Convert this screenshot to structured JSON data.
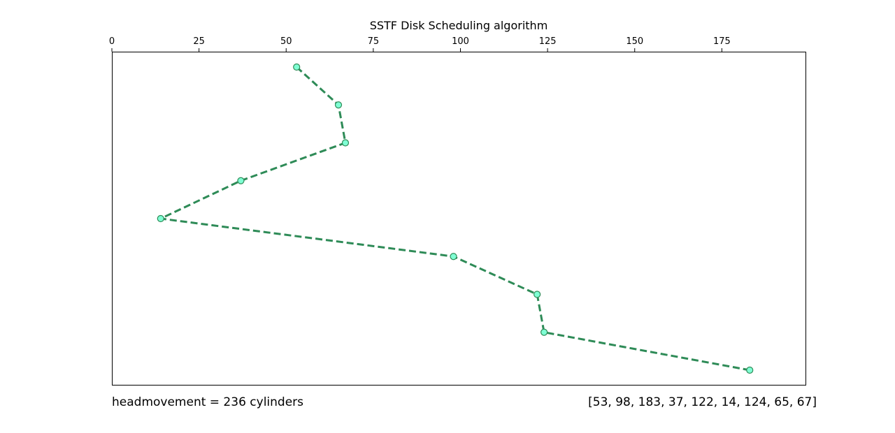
{
  "chart_data": {
    "type": "line",
    "title": "SSTF Disk Scheduling algorithm",
    "xlabel": "",
    "ylabel": "",
    "x_axis_position": "top",
    "xlim": [
      0,
      199
    ],
    "x_ticks": [
      0,
      25,
      50,
      75,
      100,
      125,
      150,
      175
    ],
    "x_tick_labels": [
      "0",
      "25",
      "50",
      "75",
      "100",
      "125",
      "150",
      "175"
    ],
    "y_axis_visible": false,
    "y_inverted": true,
    "grid": false,
    "series": [
      {
        "x": [
          53,
          65,
          67,
          37,
          14,
          98,
          122,
          124,
          183
        ],
        "y": [
          0,
          1,
          2,
          3,
          4,
          5,
          6,
          7,
          8
        ],
        "line_style": "dashed",
        "line_color": "#2e8b57",
        "marker": "circle",
        "marker_face_color": "#7fffd4"
      }
    ]
  },
  "annotations": {
    "headmovement": "headmovement = 236 cylinders",
    "request_queue": "[53, 98, 183, 37, 122, 14, 124, 65, 67]"
  }
}
